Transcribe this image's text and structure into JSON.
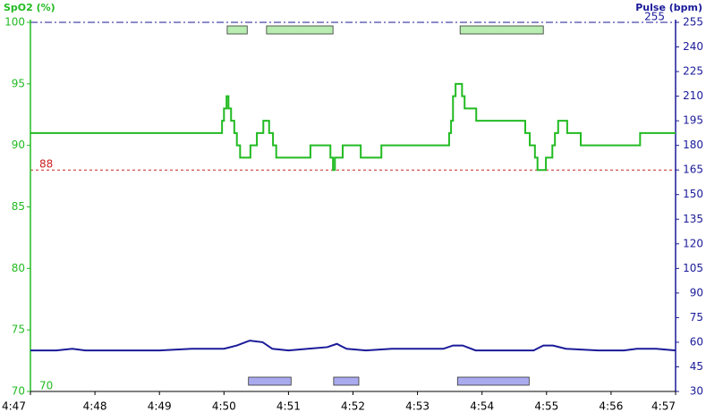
{
  "chart_data": {
    "type": "line",
    "y_label": "SpO2 (%)",
    "y2_label": "Pulse (bpm)",
    "drawstyle": "steps-post",
    "xlim": [
      47,
      57
    ],
    "xticks": [
      {
        "value": 47,
        "label": "4:47"
      },
      {
        "value": 48,
        "label": "4:48"
      },
      {
        "value": 49,
        "label": "4:49"
      },
      {
        "value": 50,
        "label": "4:50"
      },
      {
        "value": 51,
        "label": "4:51"
      },
      {
        "value": 52,
        "label": "4:52"
      },
      {
        "value": 53,
        "label": "4:53"
      },
      {
        "value": 54,
        "label": "4:54"
      },
      {
        "value": 55,
        "label": "4:55"
      },
      {
        "value": 56,
        "label": "4:56"
      },
      {
        "value": 57,
        "label": "4:57"
      }
    ],
    "ylim": [
      70,
      100
    ],
    "yticks": [
      70,
      75,
      80,
      85,
      90,
      95,
      100
    ],
    "y_color": "#22bb22",
    "y2lim": [
      30,
      255
    ],
    "y2ticks": [
      30,
      45,
      60,
      75,
      90,
      105,
      120,
      135,
      150,
      165,
      180,
      195,
      210,
      225,
      240,
      255
    ],
    "y2_color": "#1a1a99",
    "series": [
      {
        "name": "SpO2",
        "color": "#22bb22",
        "steps": true,
        "x": [
          47.0,
          49.97,
          50.0,
          50.04,
          50.07,
          50.11,
          50.16,
          50.2,
          50.25,
          50.41,
          50.51,
          50.61,
          50.7,
          50.76,
          50.81,
          51.34,
          51.65,
          51.69,
          51.72,
          51.84,
          52.12,
          52.44,
          53.49,
          53.52,
          53.55,
          53.59,
          53.69,
          53.73,
          53.91,
          54.67,
          54.74,
          54.82,
          54.86,
          54.99,
          55.09,
          55.13,
          55.18,
          55.32,
          55.53,
          56.45,
          57.0
        ],
        "values": [
          91,
          92,
          93,
          94,
          93,
          92,
          91,
          90,
          89,
          90,
          91,
          92,
          91,
          90,
          89,
          90,
          89,
          88,
          89,
          90,
          89,
          90,
          91,
          92,
          94,
          95,
          94,
          93,
          92,
          91,
          90,
          89,
          88,
          89,
          90,
          91,
          92,
          91,
          90,
          91,
          91
        ]
      },
      {
        "name": "Pulse",
        "color": "#1a1a99",
        "axis": "y2",
        "steps": false,
        "x": [
          47.0,
          47.4,
          47.65,
          47.85,
          48.5,
          49.0,
          49.5,
          50.0,
          50.2,
          50.4,
          50.6,
          50.75,
          51.0,
          51.3,
          51.6,
          51.75,
          51.9,
          52.2,
          52.6,
          53.0,
          53.4,
          53.55,
          53.7,
          53.9,
          54.5,
          54.8,
          54.95,
          55.1,
          55.3,
          55.8,
          56.2,
          56.4,
          56.7,
          57.0
        ],
        "values": [
          55,
          55,
          56,
          55,
          55,
          55,
          56,
          56,
          58,
          61,
          60,
          56,
          55,
          56,
          57,
          59,
          56,
          55,
          56,
          56,
          56,
          58,
          58,
          55,
          55,
          55,
          58,
          58,
          56,
          55,
          55,
          56,
          56,
          55
        ]
      }
    ],
    "events": [
      {
        "start": 50.05,
        "end": 50.36,
        "color": "#b8ecb0",
        "row": "top"
      },
      {
        "start": 50.66,
        "end": 51.69,
        "color": "#b8ecb0",
        "row": "top"
      },
      {
        "start": 53.66,
        "end": 54.95,
        "color": "#b8ecb0",
        "row": "top"
      },
      {
        "start": 50.38,
        "end": 51.04,
        "color": "#aaaaee",
        "row": "bottom"
      },
      {
        "start": 51.7,
        "end": 52.09,
        "color": "#aaaaee",
        "row": "bottom"
      },
      {
        "start": 53.62,
        "end": 54.73,
        "color": "#aaaaee",
        "row": "bottom"
      }
    ],
    "ref_lines": [
      {
        "value": 88,
        "axis": "y",
        "color": "#cc2222",
        "dash": "3,3"
      },
      {
        "value": 70,
        "axis": "y",
        "color": "#22bb22",
        "dash": "5,4"
      },
      {
        "value": 255,
        "axis": "y2",
        "color": "#1a1a99",
        "dash": "8,3,2,3"
      }
    ]
  }
}
